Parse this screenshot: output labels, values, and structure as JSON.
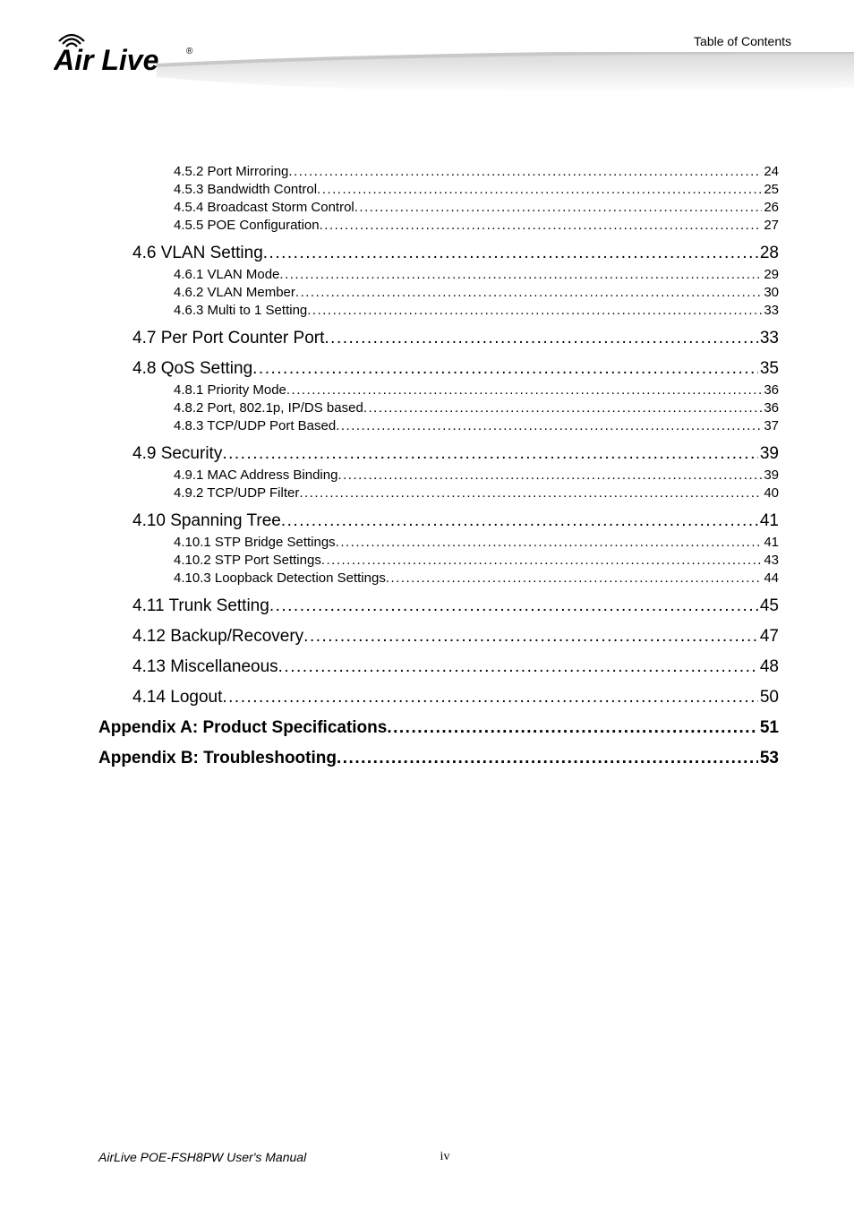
{
  "header": {
    "label": "Table of Contents",
    "logo_text_main": "Air Live",
    "logo_reg": "®"
  },
  "toc": [
    {
      "level": "sub",
      "label": "4.5.2 Port Mirroring",
      "page": "24"
    },
    {
      "level": "sub",
      "label": "4.5.3 Bandwidth Control",
      "page": "25"
    },
    {
      "level": "sub",
      "label": "4.5.4 Broadcast Storm Control",
      "page": "26"
    },
    {
      "level": "sub",
      "label": "4.5.5 POE Configuration",
      "page": "27"
    },
    {
      "level": "section",
      "label": "4.6 VLAN Setting",
      "page": "28"
    },
    {
      "level": "sub",
      "label": "4.6.1 VLAN Mode",
      "page": "29"
    },
    {
      "level": "sub",
      "label": "4.6.2 VLAN Member",
      "page": "30"
    },
    {
      "level": "sub",
      "label": "4.6.3 Multi to 1 Setting",
      "page": "33"
    },
    {
      "level": "section",
      "label": "4.7 Per Port Counter Port",
      "page": "33"
    },
    {
      "level": "section",
      "label": "4.8 QoS Setting",
      "page": "35"
    },
    {
      "level": "sub",
      "label": "4.8.1 Priority Mode",
      "page": "36"
    },
    {
      "level": "sub",
      "label": "4.8.2 Port, 802.1p, IP/DS based",
      "page": "36"
    },
    {
      "level": "sub",
      "label": "4.8.3 TCP/UDP Port Based",
      "page": "37"
    },
    {
      "level": "section",
      "label": "4.9 Security",
      "page": "39"
    },
    {
      "level": "sub",
      "label": "4.9.1 MAC Address Binding",
      "page": "39"
    },
    {
      "level": "sub",
      "label": "4.9.2 TCP/UDP Filter",
      "page": "40"
    },
    {
      "level": "section",
      "label": "4.10 Spanning Tree",
      "page": "41"
    },
    {
      "level": "sub",
      "label": "4.10.1 STP Bridge Settings",
      "page": "41"
    },
    {
      "level": "sub",
      "label": "4.10.2 STP Port Settings",
      "page": "43"
    },
    {
      "level": "sub",
      "label": "4.10.3 Loopback Detection Settings",
      "page": "44"
    },
    {
      "level": "section",
      "label": "4.11 Trunk Setting",
      "page": "45"
    },
    {
      "level": "section",
      "label": "4.12 Backup/Recovery",
      "page": "47"
    },
    {
      "level": "section",
      "label": "4.13 Miscellaneous",
      "page": "48"
    },
    {
      "level": "section",
      "label": "4.14 Logout",
      "page": "50"
    },
    {
      "level": "appendix",
      "label": "Appendix A: Product Specifications",
      "page": "51"
    },
    {
      "level": "appendix",
      "label": "Appendix B: Troubleshooting",
      "page": "53"
    }
  ],
  "footer": {
    "left": "AirLive POE-FSH8PW User's Manual",
    "center": "iv"
  },
  "colors": {
    "text": "#000000",
    "sweep_light": "#f5f5f5",
    "sweep_dark": "#d8d8d8",
    "background": "#ffffff"
  },
  "typography": {
    "header_label_size": 14,
    "section_size": 19,
    "sub_size": 15,
    "appendix_size": 19,
    "footer_size": 14
  }
}
